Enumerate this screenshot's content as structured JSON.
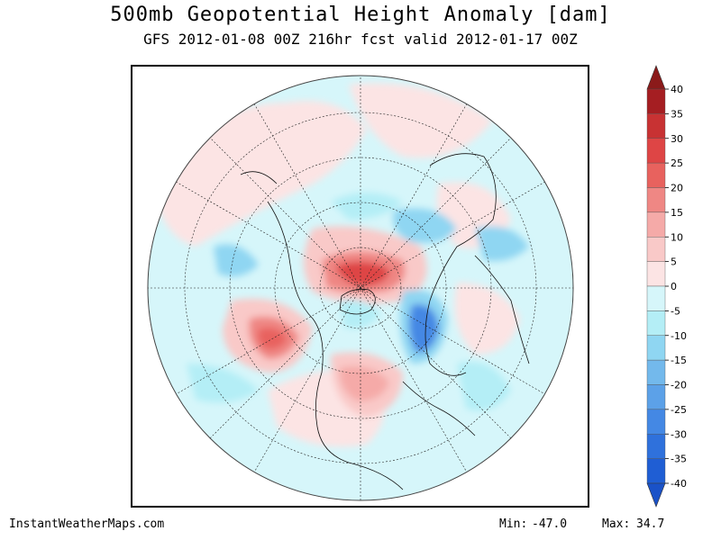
{
  "title": "500mb Geopotential Height Anomaly [dam]",
  "subtitle": "GFS 2012-01-08 00Z 216hr fcst valid 2012-01-17 00Z",
  "footer": {
    "source": "InstantWeatherMaps.com",
    "min_label": "Min:",
    "min_value": "-47.0",
    "max_label": "Max:",
    "max_value": "34.7"
  },
  "colorbar": {
    "ticks": [
      "40",
      "35",
      "30",
      "25",
      "20",
      "15",
      "10",
      "5",
      "0",
      "-5",
      "-10",
      "-15",
      "-20",
      "-25",
      "-30",
      "-35",
      "-40"
    ],
    "colors": [
      "#a51e22",
      "#c83233",
      "#de4545",
      "#e8625e",
      "#ef8784",
      "#f5aaa8",
      "#f9c9c8",
      "#fce4e4",
      "#d6f6fa",
      "#b4eef6",
      "#8fd6f2",
      "#73b9ec",
      "#5ca1e8",
      "#4488e4",
      "#2f71dc",
      "#1f5ed4"
    ],
    "top_arrow_color": "#8b1a1a",
    "bottom_arrow_color": "#1a52c8"
  },
  "map": {
    "projection": "north-polar-stereographic",
    "background_color": "#d6f6fa"
  }
}
